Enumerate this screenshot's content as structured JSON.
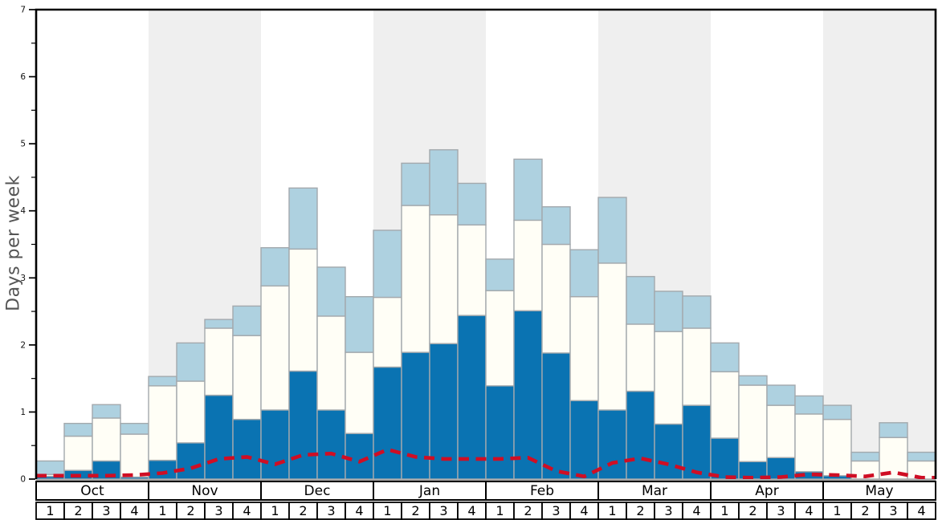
{
  "chart_data": {
    "type": "bar",
    "stacked": true,
    "title": "",
    "xlabel": "",
    "ylabel": "Days per week",
    "ylim": [
      0,
      7
    ],
    "ytick_step": 1,
    "minor_tick_step": 0.5,
    "grid": false,
    "legend": "none",
    "months": [
      "Oct",
      "Nov",
      "Dec",
      "Jan",
      "Feb",
      "Mar",
      "Apr",
      "May"
    ],
    "week_labels_per_month": [
      "1",
      "2",
      "3",
      "4"
    ],
    "shaded_months": [
      "Nov",
      "Jan",
      "Mar",
      "May"
    ],
    "series": [
      {
        "name": "dark-blue-days",
        "color": "#0a73b2",
        "values": [
          0.04,
          0.13,
          0.27,
          0.03,
          0.28,
          0.54,
          1.25,
          0.89,
          1.03,
          1.61,
          1.03,
          0.68,
          1.67,
          1.89,
          2.02,
          2.44,
          1.39,
          2.51,
          1.88,
          1.17,
          1.03,
          1.31,
          0.82,
          1.1,
          0.61,
          0.26,
          0.32,
          0.11,
          0.05,
          0.0,
          0.0,
          0.0
        ]
      },
      {
        "name": "white-days",
        "color": "#fffef6",
        "values": [
          0.03,
          0.51,
          0.64,
          0.64,
          1.11,
          0.92,
          1.0,
          1.25,
          1.85,
          1.82,
          1.4,
          1.21,
          1.04,
          2.19,
          1.92,
          1.35,
          1.42,
          1.35,
          1.62,
          1.55,
          2.19,
          1.0,
          1.38,
          1.15,
          0.99,
          1.14,
          0.78,
          0.86,
          0.84,
          0.27,
          0.62,
          0.27
        ]
      },
      {
        "name": "light-blue-days",
        "color": "#aed1e0",
        "values": [
          0.2,
          0.19,
          0.2,
          0.16,
          0.14,
          0.57,
          0.13,
          0.44,
          0.57,
          0.91,
          0.73,
          0.83,
          1.0,
          0.63,
          0.97,
          0.62,
          0.47,
          0.91,
          0.56,
          0.7,
          0.98,
          0.71,
          0.6,
          0.48,
          0.43,
          0.14,
          0.3,
          0.27,
          0.21,
          0.13,
          0.22,
          0.13
        ]
      }
    ],
    "line_series": {
      "name": "red-dashed-line",
      "color": "#cf0e24",
      "style": "dashed",
      "values": [
        0.05,
        0.05,
        0.05,
        0.06,
        0.09,
        0.16,
        0.3,
        0.33,
        0.22,
        0.36,
        0.38,
        0.26,
        0.44,
        0.33,
        0.3,
        0.3,
        0.3,
        0.32,
        0.12,
        0.04,
        0.24,
        0.31,
        0.22,
        0.1,
        0.03,
        0.02,
        0.03,
        0.07,
        0.06,
        0.04,
        0.1,
        0.02
      ]
    },
    "yticks": [
      "0",
      "1",
      "2",
      "3",
      "4",
      "5",
      "6",
      "7"
    ],
    "colors": {
      "shaded_band": "#efefef",
      "bar_border": "#a3a9ad",
      "frame": "#000000",
      "baseline": "#a8a8a8",
      "box_fill": "#ffffff",
      "box_border": "#000000",
      "tick_label": "#111111",
      "ylabel_color": "#555555"
    }
  }
}
